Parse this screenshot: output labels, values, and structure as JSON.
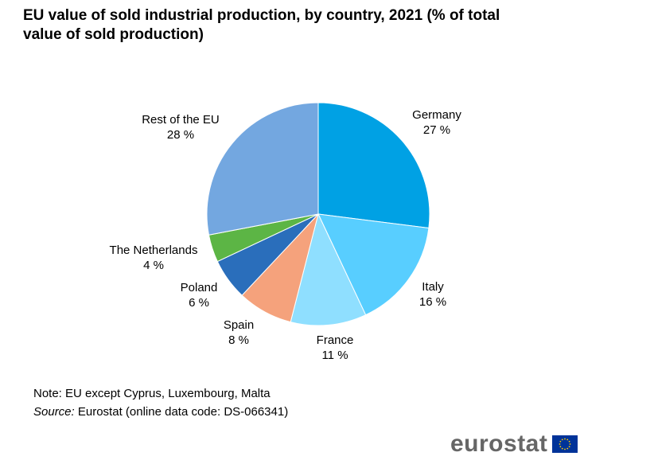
{
  "title": "EU value of sold industrial production, by country, 2021 (% of total value of sold production)",
  "note": "Note: EU except Cyprus, Luxembourg, Malta",
  "source_label": "Source:",
  "source_text": " Eurostat (online data code: DS-066341)",
  "logo_text": "eurostat",
  "chart_data": {
    "type": "pie",
    "title": "EU value of sold industrial production, by country, 2021 (% of total value of sold production)",
    "unit": "%",
    "slices": [
      {
        "label": "Germany",
        "value": 27,
        "display": "27 %",
        "color": "#00A1E4"
      },
      {
        "label": "Italy",
        "value": 16,
        "display": "16 %",
        "color": "#58CEFF"
      },
      {
        "label": "France",
        "value": 11,
        "display": "11 %",
        "color": "#8FDFFF"
      },
      {
        "label": "Spain",
        "value": 8,
        "display": "8 %",
        "color": "#F5A27C"
      },
      {
        "label": "Poland",
        "value": 6,
        "display": "6 %",
        "color": "#2A6EBB"
      },
      {
        "label": "The Netherlands",
        "value": 4,
        "display": "4 %",
        "color": "#5CB545"
      },
      {
        "label": "Rest of the EU",
        "value": 28,
        "display": "28 %",
        "color": "#73A7E0"
      }
    ]
  }
}
